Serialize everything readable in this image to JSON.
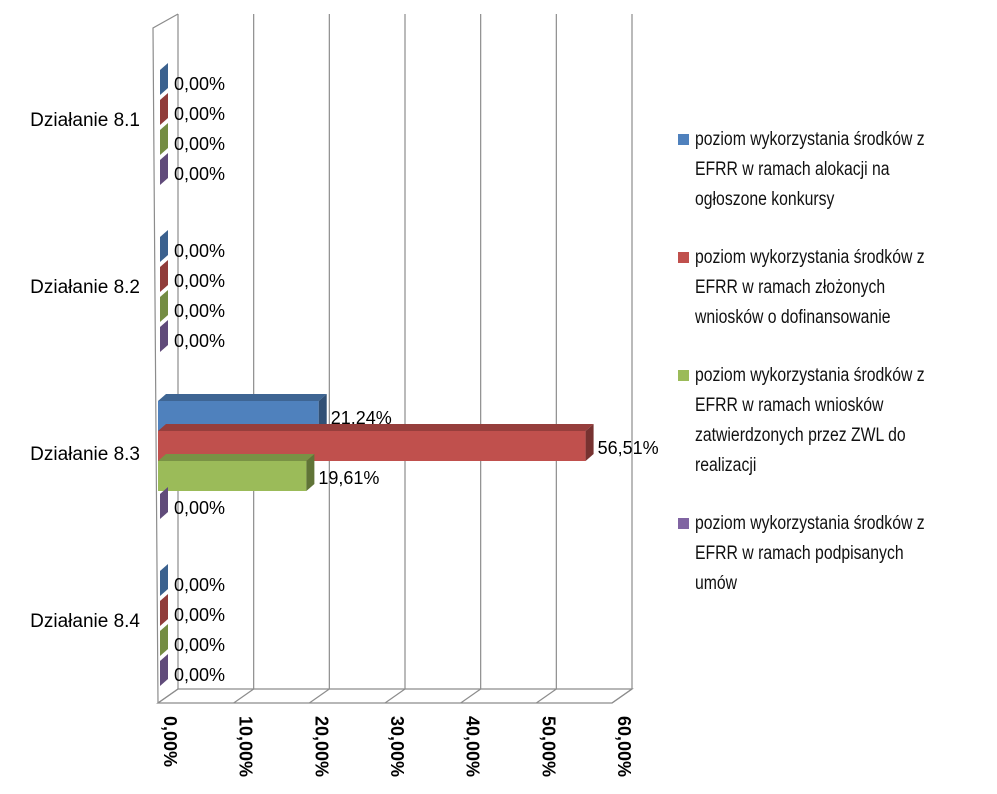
{
  "chart_data": {
    "type": "bar",
    "orientation": "horizontal",
    "three_d": true,
    "categories": [
      "Działanie 8.1",
      "Działanie 8.2",
      "Działanie 8.3",
      "Działanie 8.4"
    ],
    "series": [
      {
        "name": "poziom wykorzystania środków z EFRR w ramach alokacji na ogłoszone konkursy",
        "legend_lines": [
          "poziom wykorzystania środków z",
          "EFRR w ramach alokacji na",
          "ogłoszone konkursy"
        ],
        "color": "#4F81BD",
        "values": [
          0,
          0,
          21.24,
          0
        ],
        "labels": [
          "0,00%",
          "0,00%",
          "21,24%",
          "0,00%"
        ]
      },
      {
        "name": "poziom wykorzystania środków z EFRR w ramach złożonych wniosków o dofinansowanie",
        "legend_lines": [
          "poziom wykorzystania środków z",
          "EFRR w ramach złożonych",
          "wniosków o dofinansowanie"
        ],
        "color": "#C0504D",
        "values": [
          0,
          0,
          56.51,
          0
        ],
        "labels": [
          "0,00%",
          "0,00%",
          "56,51%",
          "0,00%"
        ]
      },
      {
        "name": "poziom wykorzystania środków z EFRR w ramach wniosków zatwierdzonych przez ZWL do realizacji",
        "legend_lines": [
          "poziom wykorzystania środków z",
          "EFRR w ramach wniosków",
          "zatwierdzonych przez ZWL do",
          "realizacji"
        ],
        "color": "#9BBB59",
        "values": [
          0,
          0,
          19.61,
          0
        ],
        "labels": [
          "0,00%",
          "0,00%",
          "19,61%",
          "0,00%"
        ]
      },
      {
        "name": "poziom wykorzystania środków z EFRR w ramach podpisanych umów",
        "legend_lines": [
          "poziom wykorzystania środków z",
          "EFRR w ramach podpisanych",
          "umów"
        ],
        "color": "#8064A2",
        "values": [
          0,
          0,
          0,
          0
        ],
        "labels": [
          "0,00%",
          "0,00%",
          "0,00%",
          "0,00%"
        ]
      }
    ],
    "x_ticks": [
      0,
      10,
      20,
      30,
      40,
      50,
      60
    ],
    "x_tick_labels": [
      "0,00%",
      "10,00%",
      "20,00%",
      "30,00%",
      "40,00%",
      "50,00%",
      "60,00%"
    ],
    "xlim": [
      0,
      60
    ],
    "grid": true,
    "legend_position": "right",
    "title": "",
    "xlabel": "",
    "ylabel": ""
  }
}
